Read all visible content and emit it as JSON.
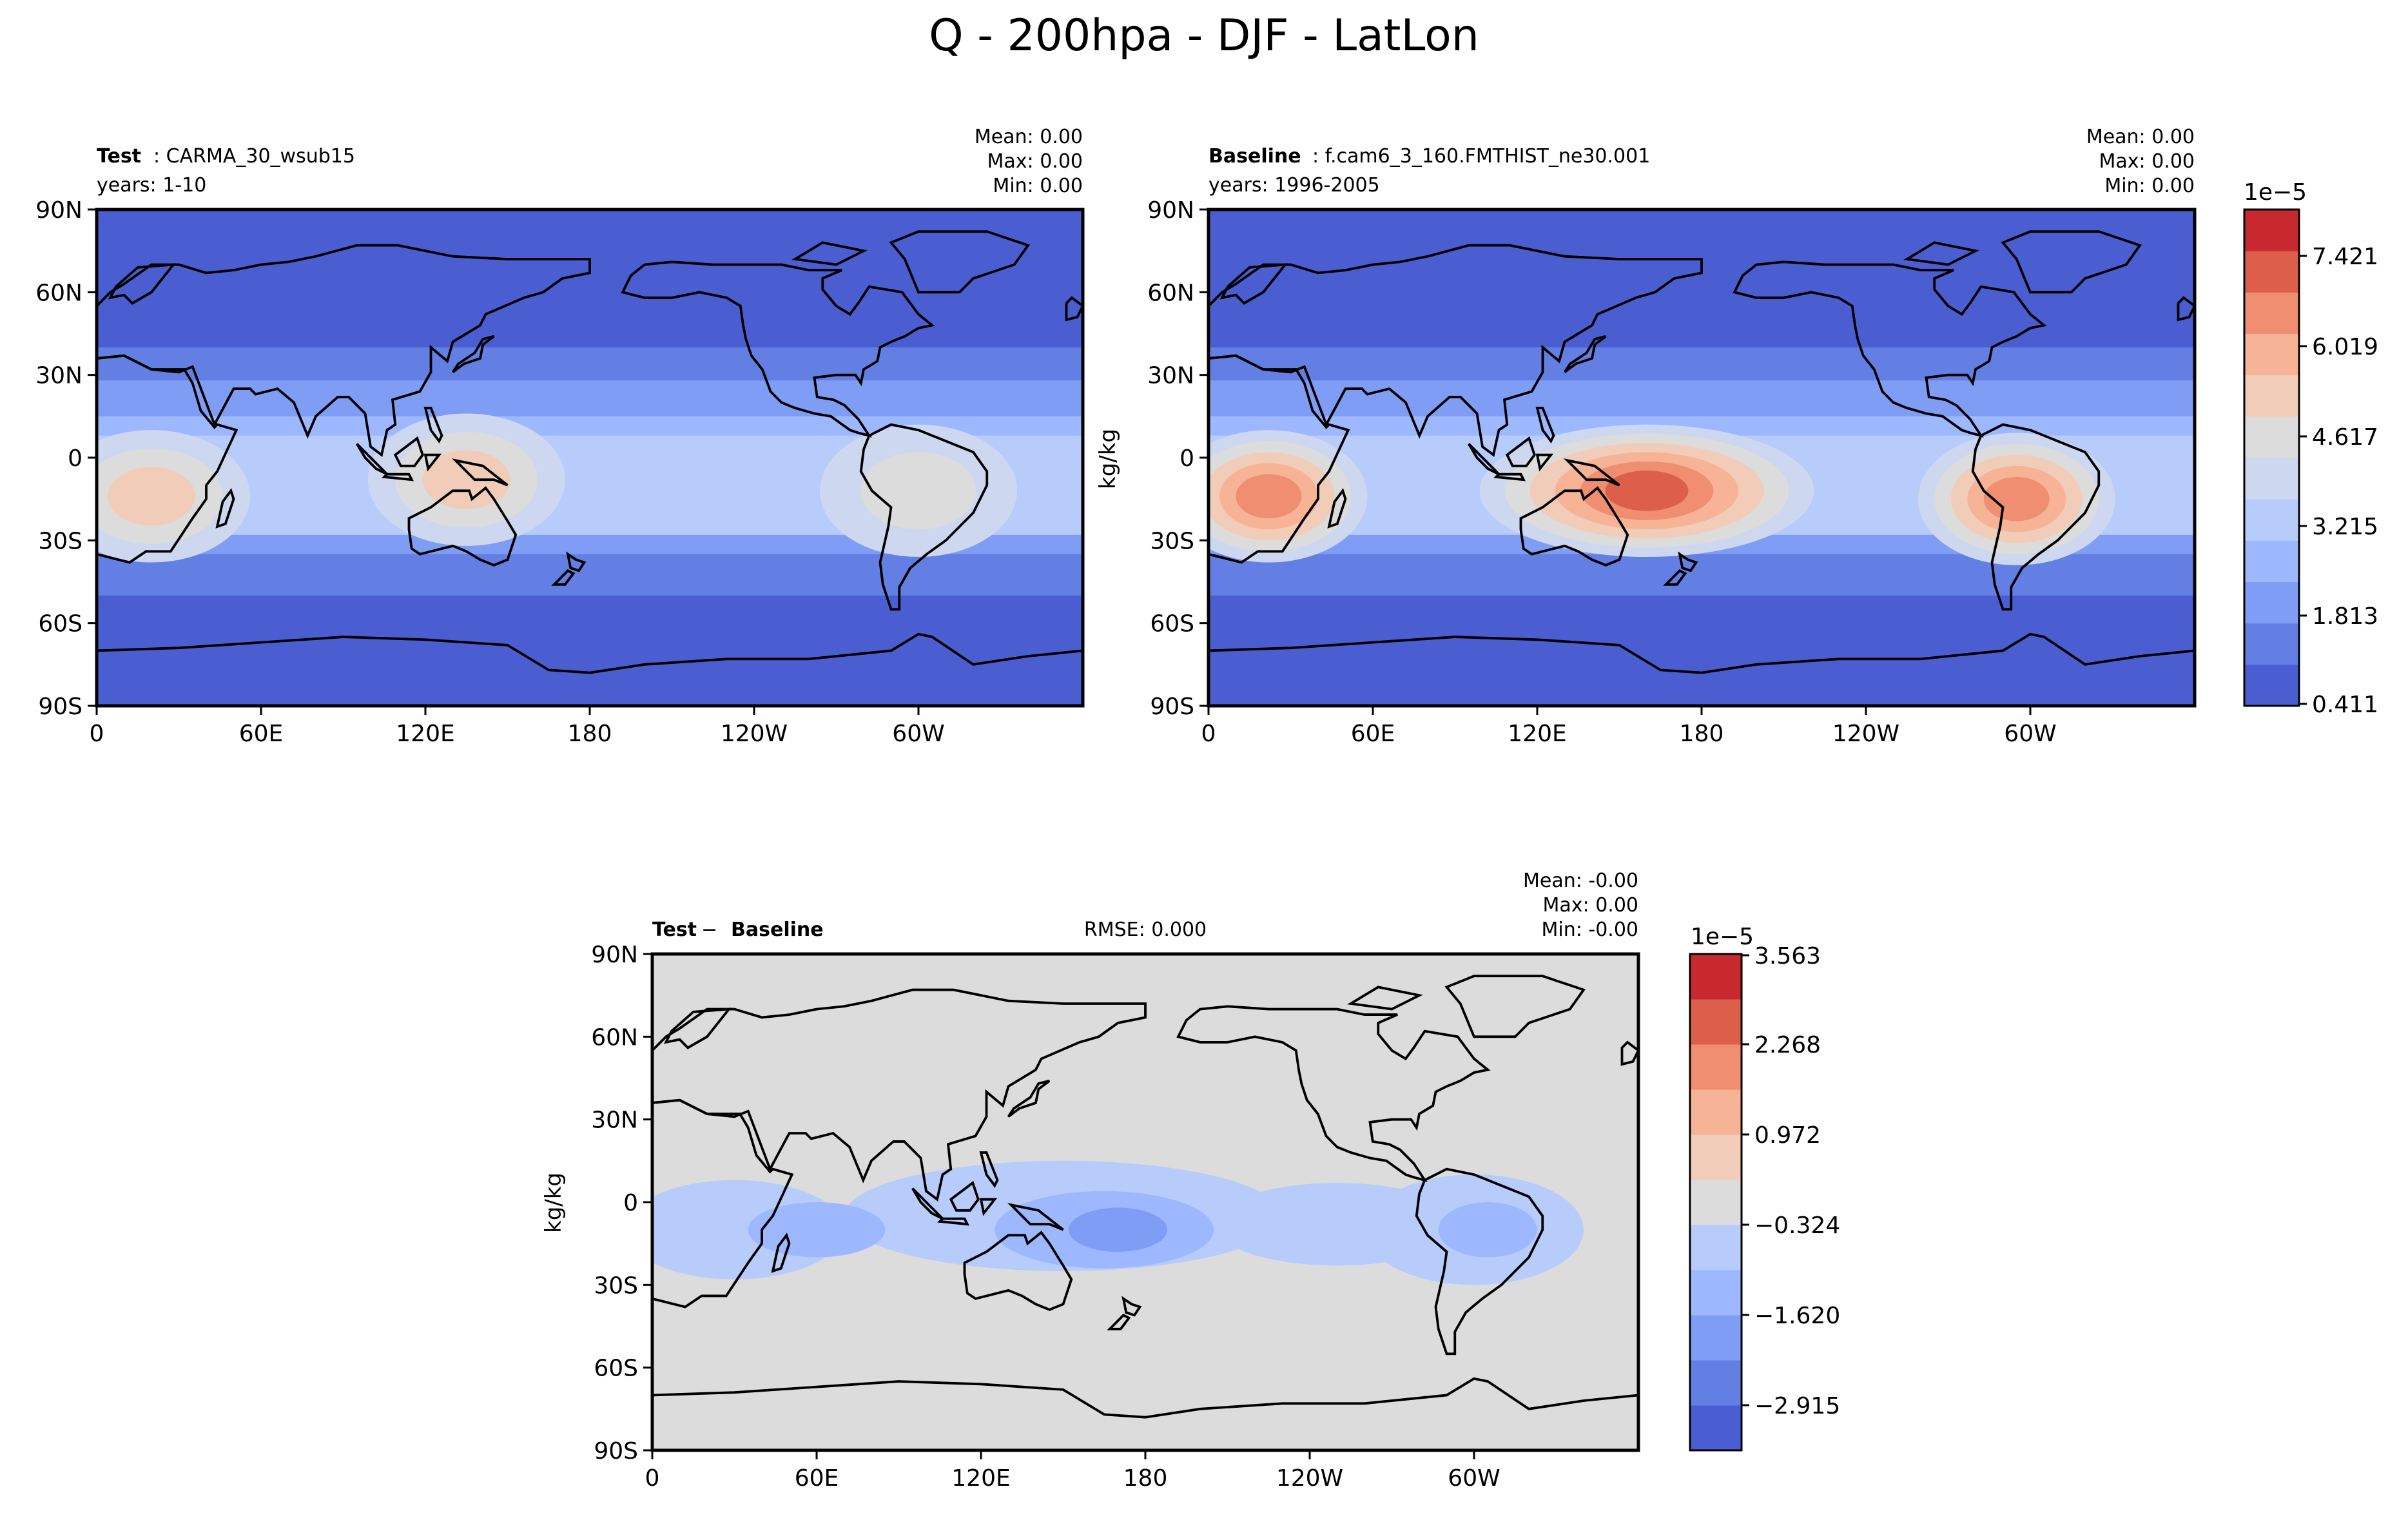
{
  "figure": {
    "title": "Q - 200hpa - DJF - LatLon"
  },
  "chart_data": [
    {
      "type": "heatmap",
      "panel": "test",
      "label_bold": "Test",
      "label_rest": ": CARMA_30_wsub15",
      "years": "years: 1-10",
      "stats": {
        "mean": "Mean:  0.00",
        "max": "Max:  0.00",
        "min": "Min:  0.00"
      },
      "x_ticks": [
        "0",
        "60E",
        "120E",
        "180",
        "120W",
        "60W"
      ],
      "y_ticks": [
        "90N",
        "60N",
        "30N",
        "0",
        "30S",
        "60S",
        "90S"
      ],
      "xlim": [
        0,
        360
      ],
      "ylim": [
        -90,
        90
      ],
      "field": "Q at 200 hPa (DJF mean)",
      "hotspots": [
        {
          "lon": 20,
          "lat": -14,
          "level": 7
        },
        {
          "lon": 135,
          "lat": -8,
          "level": 7
        },
        {
          "lon": 300,
          "lat": -12,
          "level": 6
        }
      ]
    },
    {
      "type": "heatmap",
      "panel": "baseline",
      "label_bold": "Baseline",
      "label_rest": ": f.cam6_3_160.FMTHIST_ne30.001",
      "years": "years: 1996-2005",
      "stats": {
        "mean": "Mean:  0.00",
        "max": "Max:  0.00",
        "min": "Min:  0.00"
      },
      "ylabel": "kg/kg",
      "x_ticks": [
        "0",
        "60E",
        "120E",
        "180",
        "120W",
        "60W"
      ],
      "y_ticks": [
        "90N",
        "60N",
        "30N",
        "0",
        "30S",
        "60S",
        "90S"
      ],
      "xlim": [
        0,
        360
      ],
      "ylim": [
        -90,
        90
      ],
      "colorbar": {
        "exponent": "1e−5",
        "tick_labels": [
          "0.411",
          "1.813",
          "3.215",
          "4.617",
          "6.019",
          "7.421"
        ],
        "levels": 11,
        "colors": [
          "#4a5ed2",
          "#637fe4",
          "#7f9df5",
          "#9db8fe",
          "#b7ccfb",
          "#cdd8f0",
          "#dcdcdc",
          "#f1cdb9",
          "#f6b396",
          "#f08e71",
          "#dc6049",
          "#c7292f"
        ]
      },
      "hotspots": [
        {
          "lon": 22,
          "lat": -14,
          "level": 9
        },
        {
          "lon": 160,
          "lat": -12,
          "level": 10
        },
        {
          "lon": 295,
          "lat": -15,
          "level": 9
        }
      ]
    },
    {
      "type": "heatmap",
      "panel": "diff",
      "label_bold_1": "Test",
      "label_op": " − ",
      "label_bold_2": "Baseline",
      "rmse": "RMSE: 0.000",
      "stats": {
        "mean": "Mean: -0.00",
        "max": "Max:  0.00",
        "min": "Min: -0.00"
      },
      "ylabel": "kg/kg",
      "x_ticks": [
        "0",
        "60E",
        "120E",
        "180",
        "120W",
        "60W"
      ],
      "y_ticks": [
        "90N",
        "60N",
        "30N",
        "0",
        "30S",
        "60S",
        "90S"
      ],
      "xlim": [
        0,
        360
      ],
      "ylim": [
        -90,
        90
      ],
      "colorbar": {
        "exponent": "1e−5",
        "tick_labels": [
          "3.563",
          "2.268",
          "0.972",
          "−0.324",
          "−1.620",
          "−2.915"
        ],
        "levels": 12,
        "colors": [
          "#4a5ed2",
          "#637fe4",
          "#7f9df5",
          "#9db8fe",
          "#b7ccfb",
          "#dcdcdc",
          "#f1cdb9",
          "#f6b396",
          "#f08e71",
          "#dc6049",
          "#c7292f"
        ]
      }
    }
  ]
}
